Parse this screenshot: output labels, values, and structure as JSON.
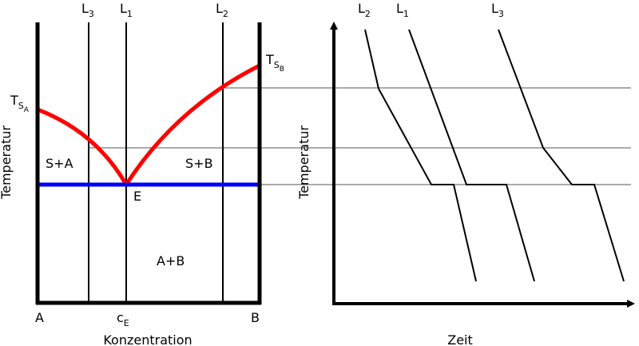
{
  "left_diagram": {
    "xlabel": "Konzentration",
    "ylabel": "Temperatur",
    "x_left_label": "A",
    "x_right_label": "B",
    "eutectic_x_label": {
      "base": "c",
      "sub": "E"
    },
    "eutectic_point_label": "E",
    "ts_a_label": {
      "base": "T",
      "sub": "S",
      "subsub": "A"
    },
    "ts_b_label": {
      "base": "T",
      "sub": "S",
      "subsub": "B"
    },
    "region_s_plus_a": "S+A",
    "region_s_plus_b": "S+B",
    "region_a_plus_b": "A+B",
    "line_l3": {
      "base": "L",
      "sub": "3"
    },
    "line_l1": {
      "base": "L",
      "sub": "1"
    },
    "line_l2": {
      "base": "L",
      "sub": "2"
    },
    "colors": {
      "liquidus": "#ff0000",
      "eutectic": "#0000ff",
      "axes": "#000000"
    }
  },
  "right_diagram": {
    "xlabel": "Zeit",
    "ylabel": "Temperatur",
    "curve_l2": {
      "base": "L",
      "sub": "2"
    },
    "curve_l1": {
      "base": "L",
      "sub": "1"
    },
    "curve_l3": {
      "base": "L",
      "sub": "3"
    }
  }
}
